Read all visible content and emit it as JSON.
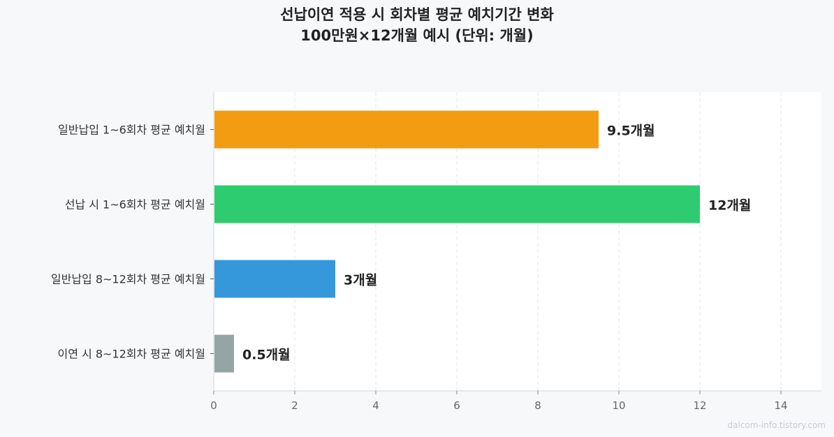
{
  "chart_data": {
    "type": "bar",
    "orientation": "horizontal",
    "title_line1": "선납이연 적용 시 회차별 평균 예치기간 변화",
    "title_line2": "100만원×12개월 예시 (단위: 개월)",
    "categories": [
      "일반납입 1~6회차 평균 예치월",
      "선납 시 1~6회차 평균 예치월",
      "일반납입 8~12회차 평균 예치월",
      "이연 시 8~12회차 평균 예치월"
    ],
    "values": [
      9.5,
      12,
      3,
      0.5
    ],
    "data_labels": [
      "9.5개월",
      "12개월",
      "3개월",
      "0.5개월"
    ],
    "colors": [
      "#f39c12",
      "#2ecc71",
      "#3498db",
      "#95a5a6"
    ],
    "xlim": [
      0,
      15
    ],
    "xticks": [
      "0",
      "2",
      "4",
      "6",
      "8",
      "10",
      "12",
      "14"
    ],
    "xtick_values": [
      0,
      2,
      4,
      6,
      8,
      10,
      12,
      14
    ],
    "grid": "x-dashed",
    "xlabel": "",
    "ylabel": ""
  },
  "watermark": "dalcom-info.tistory.com"
}
